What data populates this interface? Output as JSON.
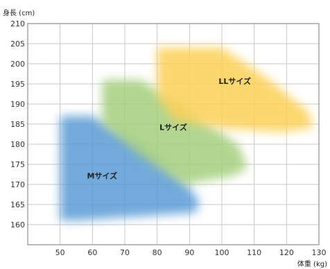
{
  "chart_data": {
    "type": "area",
    "ylabel": "身長 (cm)",
    "xlabel": "体重 (kg)",
    "xlim": [
      40,
      130
    ],
    "ylim": [
      155,
      210
    ],
    "x_ticks": [
      50,
      60,
      70,
      80,
      90,
      100,
      110,
      120,
      130
    ],
    "y_ticks": [
      160,
      165,
      170,
      175,
      180,
      185,
      190,
      195,
      200,
      205,
      210
    ],
    "grid": true,
    "regions": [
      {
        "name": "Mサイズ",
        "color": "#5b9bd5",
        "label_at": [
          63,
          171.5
        ],
        "polygon": [
          [
            50,
            187
          ],
          [
            60,
            187
          ],
          [
            75,
            180
          ],
          [
            88,
            171
          ],
          [
            93,
            166
          ],
          [
            92,
            163
          ],
          [
            55,
            161
          ],
          [
            50,
            161
          ]
        ]
      },
      {
        "name": "Lサイズ",
        "color": "#a4cf7c",
        "label_at": [
          85,
          183.5
        ],
        "polygon": [
          [
            63,
            196
          ],
          [
            75,
            196
          ],
          [
            90,
            188
          ],
          [
            105,
            180
          ],
          [
            108,
            174
          ],
          [
            103,
            172
          ],
          [
            88,
            170
          ],
          [
            75,
            177
          ],
          [
            63,
            185
          ]
        ]
      },
      {
        "name": "LLサイズ",
        "color": "#fcd055",
        "label_at": [
          104,
          195
        ],
        "polygon": [
          [
            80,
            204
          ],
          [
            100,
            204
          ],
          [
            113,
            197
          ],
          [
            127,
            188
          ],
          [
            128,
            184
          ],
          [
            118,
            183
          ],
          [
            100,
            184
          ],
          [
            85,
            186
          ],
          [
            80,
            192
          ]
        ]
      }
    ]
  }
}
